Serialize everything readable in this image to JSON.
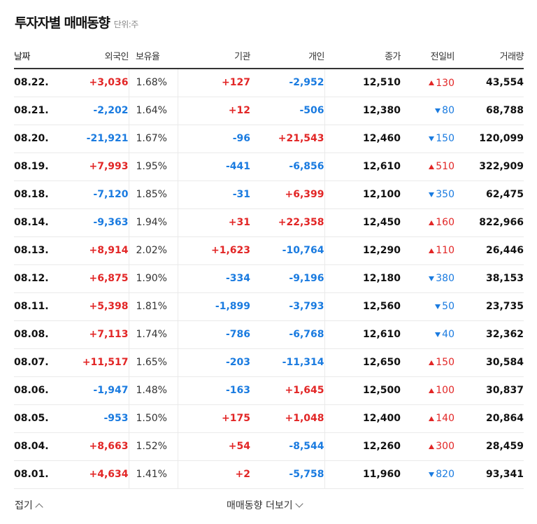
{
  "header": {
    "title": "투자자별 매매동향",
    "unit": "단위:주"
  },
  "columns": {
    "date": "날짜",
    "foreign": "외국인",
    "ratio": "보유율",
    "institution": "기관",
    "individual": "개인",
    "close": "종가",
    "change": "전일비",
    "volume": "거래량"
  },
  "colors": {
    "up": "#e22626",
    "down": "#1a7be0"
  },
  "rows": [
    {
      "date": "08.22.",
      "foreign": "+3,036",
      "ratio": "1.68%",
      "institution": "+127",
      "individual": "-2,952",
      "close": "12,510",
      "change": "130",
      "dir": "up",
      "volume": "43,554"
    },
    {
      "date": "08.21.",
      "foreign": "-2,202",
      "ratio": "1.64%",
      "institution": "+12",
      "individual": "-506",
      "close": "12,380",
      "change": "80",
      "dir": "down",
      "volume": "68,788"
    },
    {
      "date": "08.20.",
      "foreign": "-21,921",
      "ratio": "1.67%",
      "institution": "-96",
      "individual": "+21,543",
      "close": "12,460",
      "change": "150",
      "dir": "down",
      "volume": "120,099"
    },
    {
      "date": "08.19.",
      "foreign": "+7,993",
      "ratio": "1.95%",
      "institution": "-441",
      "individual": "-6,856",
      "close": "12,610",
      "change": "510",
      "dir": "up",
      "volume": "322,909"
    },
    {
      "date": "08.18.",
      "foreign": "-7,120",
      "ratio": "1.85%",
      "institution": "-31",
      "individual": "+6,399",
      "close": "12,100",
      "change": "350",
      "dir": "down",
      "volume": "62,475"
    },
    {
      "date": "08.14.",
      "foreign": "-9,363",
      "ratio": "1.94%",
      "institution": "+31",
      "individual": "+22,358",
      "close": "12,450",
      "change": "160",
      "dir": "up",
      "volume": "822,966"
    },
    {
      "date": "08.13.",
      "foreign": "+8,914",
      "ratio": "2.02%",
      "institution": "+1,623",
      "individual": "-10,764",
      "close": "12,290",
      "change": "110",
      "dir": "up",
      "volume": "26,446"
    },
    {
      "date": "08.12.",
      "foreign": "+6,875",
      "ratio": "1.90%",
      "institution": "-334",
      "individual": "-9,196",
      "close": "12,180",
      "change": "380",
      "dir": "down",
      "volume": "38,153"
    },
    {
      "date": "08.11.",
      "foreign": "+5,398",
      "ratio": "1.81%",
      "institution": "-1,899",
      "individual": "-3,793",
      "close": "12,560",
      "change": "50",
      "dir": "down",
      "volume": "23,735"
    },
    {
      "date": "08.08.",
      "foreign": "+7,113",
      "ratio": "1.74%",
      "institution": "-786",
      "individual": "-6,768",
      "close": "12,610",
      "change": "40",
      "dir": "down",
      "volume": "32,362"
    },
    {
      "date": "08.07.",
      "foreign": "+11,517",
      "ratio": "1.65%",
      "institution": "-203",
      "individual": "-11,314",
      "close": "12,650",
      "change": "150",
      "dir": "up",
      "volume": "30,584"
    },
    {
      "date": "08.06.",
      "foreign": "-1,947",
      "ratio": "1.48%",
      "institution": "-163",
      "individual": "+1,645",
      "close": "12,500",
      "change": "100",
      "dir": "up",
      "volume": "30,837"
    },
    {
      "date": "08.05.",
      "foreign": "-953",
      "ratio": "1.50%",
      "institution": "+175",
      "individual": "+1,048",
      "close": "12,400",
      "change": "140",
      "dir": "up",
      "volume": "20,864"
    },
    {
      "date": "08.04.",
      "foreign": "+8,663",
      "ratio": "1.52%",
      "institution": "+54",
      "individual": "-8,544",
      "close": "12,260",
      "change": "300",
      "dir": "up",
      "volume": "28,459"
    },
    {
      "date": "08.01.",
      "foreign": "+4,634",
      "ratio": "1.41%",
      "institution": "+2",
      "individual": "-5,758",
      "close": "11,960",
      "change": "820",
      "dir": "down",
      "volume": "93,341"
    }
  ],
  "footer": {
    "fold_label": "접기",
    "more_label": "매매동향 더보기"
  }
}
